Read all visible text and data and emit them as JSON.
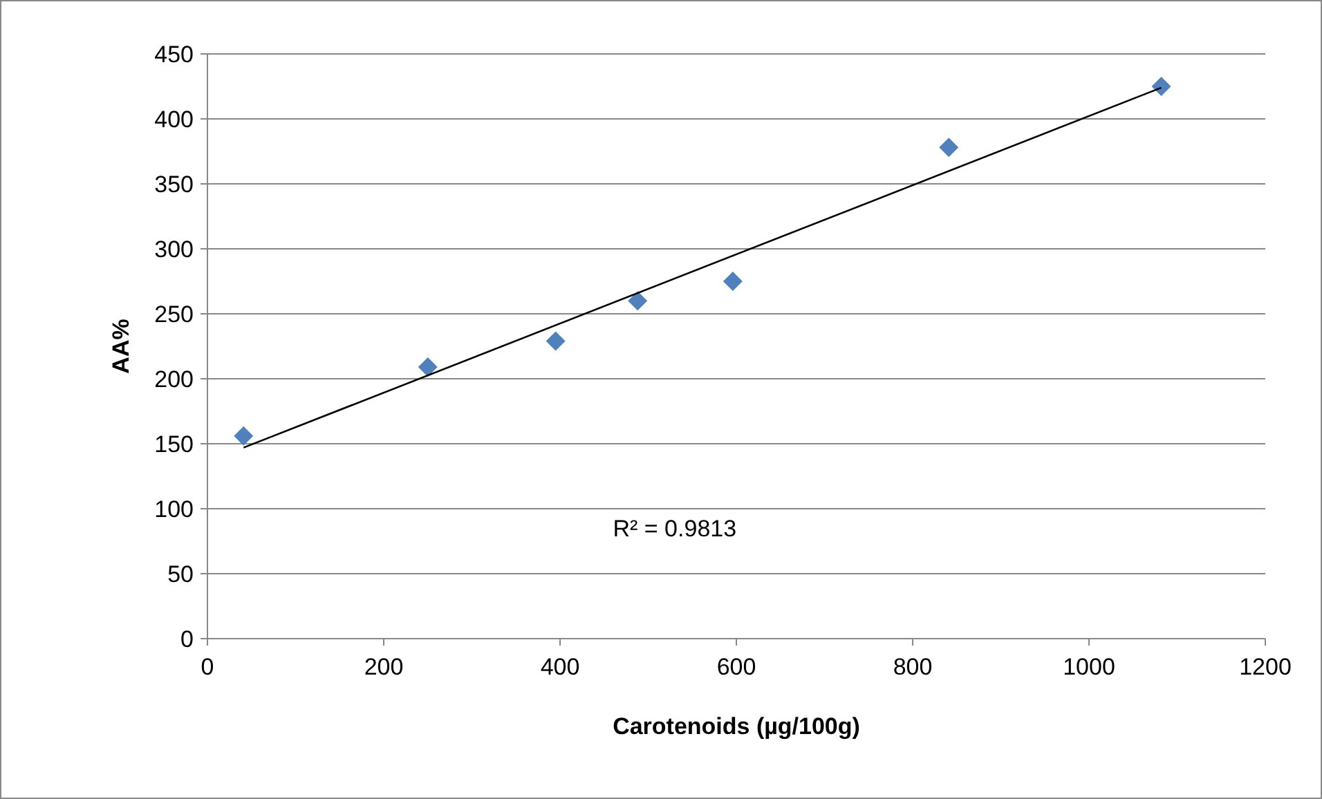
{
  "chart_data": {
    "type": "scatter",
    "xlabel": "Carotenoids (µg/100g)",
    "ylabel": "AA%",
    "xlim": [
      0,
      1200
    ],
    "xticks": [
      0,
      200,
      400,
      600,
      800,
      1000,
      1200
    ],
    "ylim": [
      0,
      450
    ],
    "yticks": [
      0,
      50,
      100,
      150,
      200,
      250,
      300,
      350,
      400,
      450
    ],
    "grid": "y",
    "marker": "diamond",
    "series": [
      {
        "color": "#4f81bd",
        "x": [
          41,
          250,
          395,
          488,
          596,
          841,
          1082
        ],
        "values": [
          156,
          209,
          229,
          260,
          275,
          378,
          425
        ]
      },
      {
        "type": "line",
        "color": "#000000",
        "marker": "none",
        "line_style": "solid",
        "x": [
          41,
          1082
        ],
        "values": [
          147,
          424
        ]
      }
    ],
    "annotations": [
      "R² = 0.9813"
    ]
  }
}
